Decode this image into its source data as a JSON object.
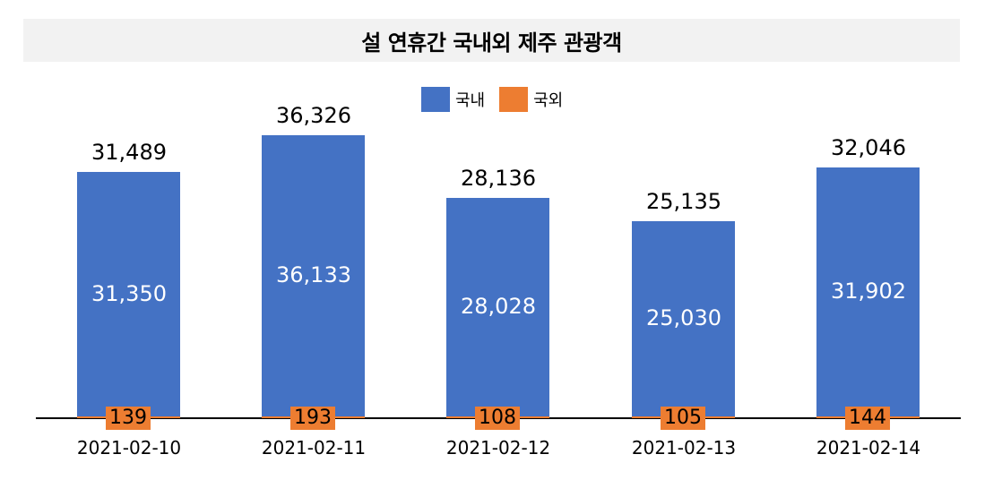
{
  "title": "설 연휴간 국내외 제주 관광객",
  "legend": {
    "domestic": {
      "label": "국내",
      "color": "#4472c4"
    },
    "foreign": {
      "label": "국외",
      "color": "#ed7d31"
    }
  },
  "bars": [
    {
      "date": "2021-02-10",
      "domestic": "31,350",
      "foreign": "139",
      "total": "31,489"
    },
    {
      "date": "2021-02-11",
      "domestic": "36,133",
      "foreign": "193",
      "total": "36,326"
    },
    {
      "date": "2021-02-12",
      "domestic": "28,028",
      "foreign": "108",
      "total": "28,136"
    },
    {
      "date": "2021-02-13",
      "domestic": "25,030",
      "foreign": "105",
      "total": "25,135"
    },
    {
      "date": "2021-02-14",
      "domestic": "31,902",
      "foreign": "144",
      "total": "32,046"
    }
  ],
  "chart_data": {
    "type": "bar",
    "stacked": true,
    "title": "설 연휴간 국내외 제주 관광객",
    "categories": [
      "2021-02-10",
      "2021-02-11",
      "2021-02-12",
      "2021-02-13",
      "2021-02-14"
    ],
    "series": [
      {
        "name": "국내",
        "color": "#4472c4",
        "values": [
          31350,
          36133,
          28028,
          25030,
          31902
        ]
      },
      {
        "name": "국외",
        "color": "#ed7d31",
        "values": [
          139,
          193,
          108,
          105,
          144
        ]
      }
    ],
    "totals": [
      31489,
      36326,
      28136,
      25135,
      32046
    ],
    "xlabel": "",
    "ylabel": "",
    "legend_position": "top",
    "grid": false,
    "y_axis_visible": false
  }
}
